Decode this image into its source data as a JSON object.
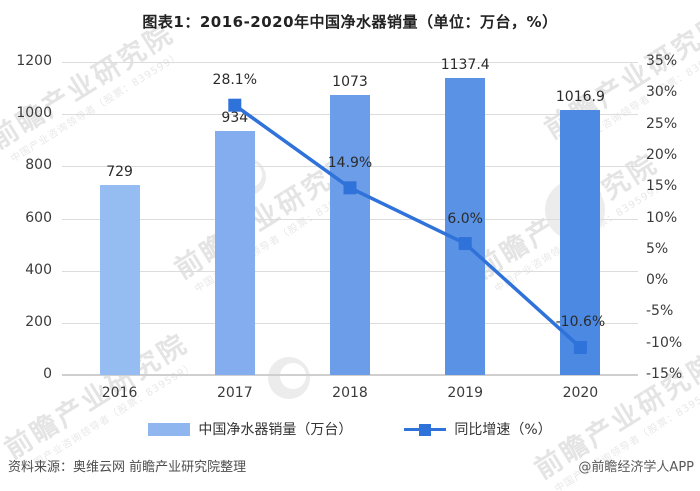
{
  "title": "图表1：2016-2020年中国净水器销量（单位：万台，%）",
  "chart_data": {
    "type": "bar+line",
    "categories": [
      "2016",
      "2017",
      "2018",
      "2019",
      "2020"
    ],
    "series": [
      {
        "name": "中国净水器销量（万台）",
        "type": "bar",
        "axis": "left",
        "values": [
          729,
          934,
          1073,
          1137.4,
          1016.9
        ],
        "labels": [
          "729",
          "934",
          "1073",
          "1137.4",
          "1016.9"
        ],
        "bar_colors": [
          "#96bdf1",
          "#83adef",
          "#6c9de9",
          "#5a92e5",
          "#4b89e2"
        ]
      },
      {
        "name": "同比增速（%）",
        "type": "line",
        "axis": "right",
        "values": [
          null,
          28.1,
          14.9,
          6.0,
          -10.6
        ],
        "labels": [
          null,
          "28.1%",
          "14.9%",
          "6.0%",
          "-10.6%"
        ],
        "color": "#2e72da"
      }
    ],
    "left_axis": {
      "min": 0,
      "max": 1200,
      "step": 200,
      "ticks": [
        "0",
        "200",
        "400",
        "600",
        "800",
        "1000",
        "1200"
      ]
    },
    "right_axis": {
      "min": -15,
      "max": 35,
      "step": 5,
      "ticks": [
        "-15%",
        "-10%",
        "-5%",
        "0%",
        "5%",
        "10%",
        "15%",
        "20%",
        "25%",
        "30%",
        "35%"
      ]
    },
    "grid": true,
    "legend_position": "bottom"
  },
  "legend": {
    "bar_label": "中国净水器销量（万台）",
    "line_label": "同比增速（%）"
  },
  "footer": {
    "source": "资料来源：奥维云网 前瞻产业研究院整理",
    "credit": "@前瞻经济学人APP"
  },
  "watermark": {
    "text": "前瞻产业研究院",
    "subtext": "中国产业咨询领导者（股票：839599）"
  },
  "colors": {
    "line": "#2e72da",
    "legend_bar_swatch": "#8fb6ef",
    "gridline": "#dcdcdc",
    "axis_text": "#3b3b3b",
    "watermark": "#e4e4e4"
  }
}
